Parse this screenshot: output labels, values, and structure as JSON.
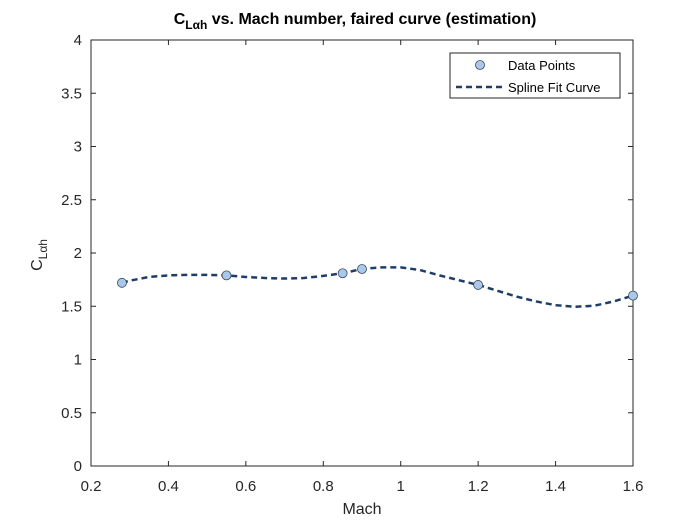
{
  "chart_data": {
    "type": "line",
    "title": {
      "symbol": "C",
      "symbol_subscript": "Lαh",
      "text": " vs. Mach number, faired curve (estimation)"
    },
    "xlabel": "Mach",
    "ylabel": {
      "symbol": "C",
      "symbol_subscript": "Lαh"
    },
    "xlim": [
      0.2,
      1.6
    ],
    "ylim": [
      0,
      4
    ],
    "xticks": [
      0.2,
      0.4,
      0.6,
      0.8,
      1,
      1.2,
      1.4,
      1.6
    ],
    "xtick_labels": [
      "0.2",
      "0.4",
      "0.6",
      "0.8",
      "1",
      "1.2",
      "1.4",
      "1.6"
    ],
    "yticks": [
      0,
      0.5,
      1,
      1.5,
      2,
      2.5,
      3,
      3.5,
      4
    ],
    "ytick_labels": [
      "0",
      "0.5",
      "1",
      "1.5",
      "2",
      "2.5",
      "3",
      "3.5",
      "4"
    ],
    "grid": false,
    "legend_position": "top-right",
    "series": [
      {
        "name": "Data Points",
        "style": "markers",
        "color": "#aac8ea",
        "edge_color": "#3a4a5c",
        "x": [
          0.28,
          0.55,
          0.85,
          0.9,
          1.2,
          1.6
        ],
        "y": [
          1.72,
          1.79,
          1.81,
          1.85,
          1.7,
          1.6
        ]
      },
      {
        "name": "Spline Fit Curve",
        "style": "dashed-line",
        "color": "#1f3d68",
        "x": [
          0.28,
          0.3,
          0.35,
          0.4,
          0.45,
          0.5,
          0.55,
          0.6,
          0.65,
          0.7,
          0.75,
          0.8,
          0.85,
          0.9,
          0.95,
          1.0,
          1.05,
          1.1,
          1.15,
          1.2,
          1.25,
          1.3,
          1.35,
          1.4,
          1.45,
          1.5,
          1.55,
          1.6
        ],
        "y": [
          1.72,
          1.74,
          1.775,
          1.79,
          1.795,
          1.795,
          1.79,
          1.775,
          1.765,
          1.76,
          1.765,
          1.785,
          1.81,
          1.85,
          1.865,
          1.865,
          1.84,
          1.79,
          1.745,
          1.7,
          1.645,
          1.59,
          1.545,
          1.51,
          1.495,
          1.505,
          1.545,
          1.6
        ]
      }
    ]
  }
}
